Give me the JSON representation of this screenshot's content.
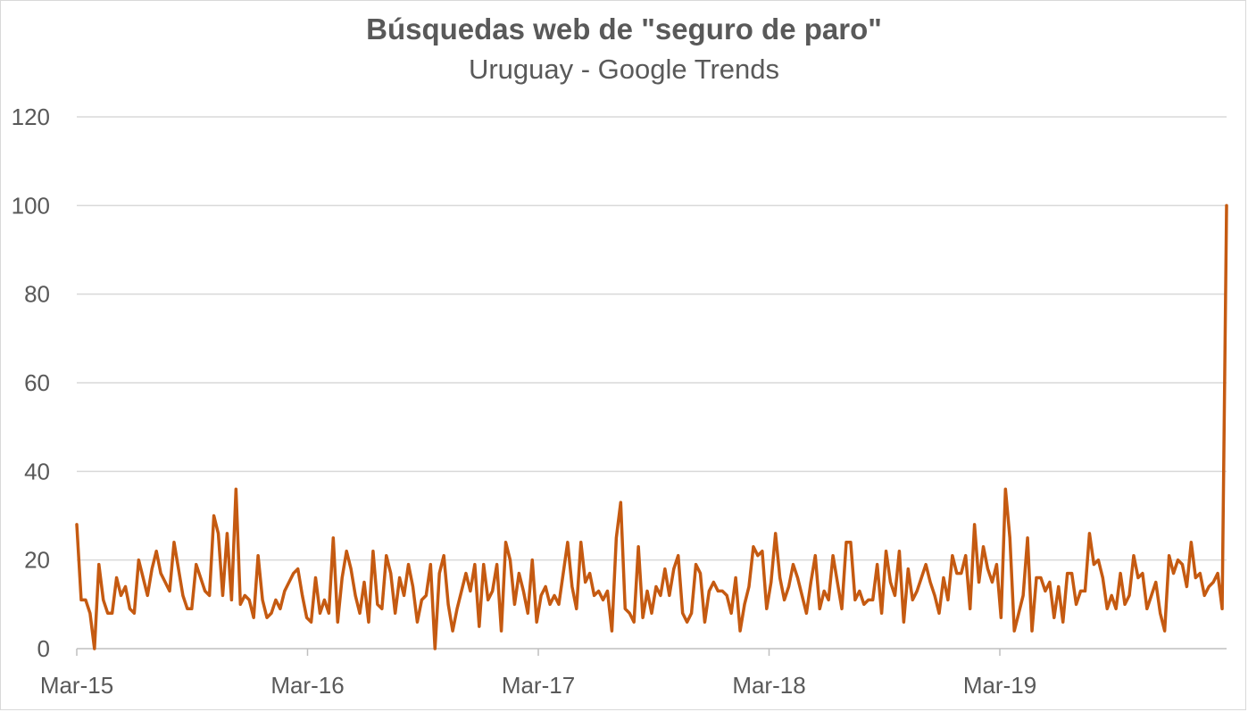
{
  "chart_data": {
    "type": "line",
    "title": "Búsquedas web de \"seguro de paro\"",
    "subtitle": "Uruguay - Google Trends",
    "xlabel": "",
    "ylabel": "",
    "ylim": [
      0,
      120
    ],
    "y_ticks": [
      "0",
      "20",
      "40",
      "60",
      "80",
      "100",
      "120"
    ],
    "x_ticks": [
      "Mar-15",
      "Mar-16",
      "Mar-17",
      "Mar-18",
      "Mar-19"
    ],
    "grid": true,
    "legend": "none",
    "series": [
      {
        "color": "#c55a11",
        "values": [
          28,
          11,
          11,
          8,
          0,
          19,
          11,
          8,
          8,
          16,
          12,
          14,
          9,
          8,
          20,
          16,
          12,
          18,
          22,
          17,
          15,
          13,
          24,
          18,
          12,
          9,
          9,
          19,
          16,
          13,
          12,
          30,
          26,
          12,
          26,
          11,
          36,
          10,
          12,
          11,
          7,
          21,
          11,
          7,
          8,
          11,
          9,
          13,
          15,
          17,
          18,
          12,
          7,
          6,
          16,
          8,
          11,
          8,
          25,
          6,
          16,
          22,
          18,
          12,
          8,
          15,
          6,
          22,
          10,
          9,
          21,
          17,
          8,
          16,
          12,
          19,
          14,
          6,
          11,
          12,
          19,
          0,
          17,
          21,
          10,
          4,
          9,
          13,
          17,
          13,
          19,
          5,
          19,
          11,
          13,
          19,
          4,
          24,
          20,
          10,
          17,
          13,
          8,
          20,
          6,
          12,
          14,
          10,
          12,
          10,
          17,
          24,
          14,
          9,
          24,
          15,
          17,
          12,
          13,
          11,
          13,
          4,
          25,
          33,
          9,
          8,
          6,
          23,
          7,
          13,
          8,
          14,
          12,
          18,
          12,
          18,
          21,
          8,
          6,
          8,
          19,
          17,
          6,
          13,
          15,
          13,
          13,
          12,
          8,
          16,
          4,
          10,
          14,
          23,
          21,
          22,
          9,
          15,
          26,
          16,
          11,
          14,
          19,
          16,
          12,
          8,
          15,
          21,
          9,
          13,
          11,
          21,
          15,
          9,
          24,
          24,
          11,
          13,
          10,
          11,
          11,
          19,
          8,
          22,
          15,
          12,
          22,
          6,
          18,
          11,
          13,
          16,
          19,
          15,
          12,
          8,
          16,
          11,
          21,
          17,
          17,
          21,
          9,
          28,
          15,
          23,
          18,
          15,
          19,
          7,
          36,
          25,
          4,
          8,
          12,
          25,
          4,
          16,
          16,
          13,
          15,
          7,
          14,
          6,
          17,
          17,
          10,
          13,
          13,
          26,
          19,
          20,
          16,
          9,
          12,
          9,
          17,
          10,
          12,
          21,
          16,
          17,
          9,
          12,
          15,
          8,
          4,
          21,
          17,
          20,
          19,
          14,
          24,
          16,
          17,
          12,
          14,
          15,
          17,
          9,
          100
        ]
      }
    ]
  }
}
